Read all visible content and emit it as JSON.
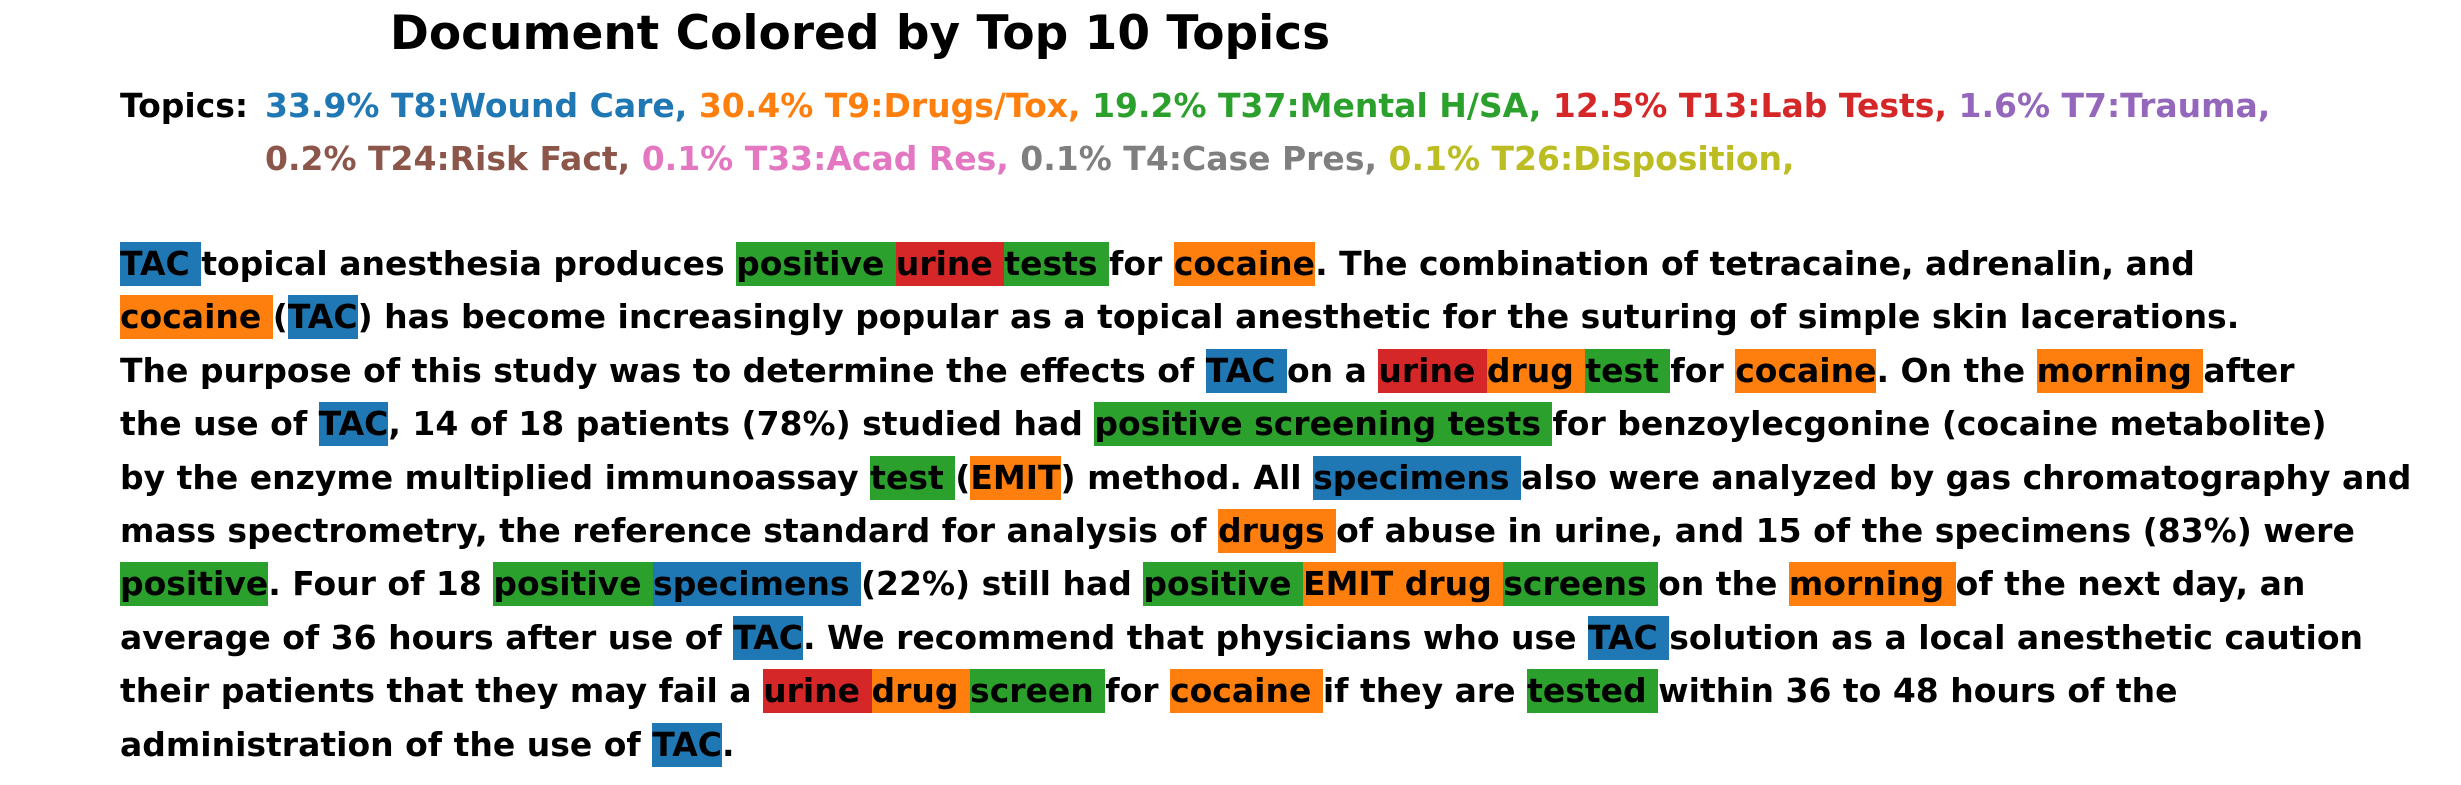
{
  "title": "Document Colored by Top 10 Topics",
  "topics_label": "Topics:",
  "topics_line1": [
    {
      "text": "33.9% T8:Wound Care,",
      "color": "#1f77b4"
    },
    {
      "text": "30.4% T9:Drugs/Tox,",
      "color": "#ff7f0e"
    },
    {
      "text": "19.2% T37:Mental H/SA,",
      "color": "#2ca02c"
    },
    {
      "text": "12.5% T13:Lab Tests,",
      "color": "#d62728"
    },
    {
      "text": "1.6% T7:Trauma,",
      "color": "#9467bd"
    }
  ],
  "topics_line2": [
    {
      "text": "0.2% T24:Risk Fact,",
      "color": "#8c564b"
    },
    {
      "text": "0.1% T33:Acad Res,",
      "color": "#e377c2"
    },
    {
      "text": "0.1% T4:Case Pres,",
      "color": "#7f7f7f"
    },
    {
      "text": "0.1% T26:Disposition,",
      "color": "#bcbd22"
    }
  ],
  "colors": {
    "blue": "#1f77b4",
    "orange": "#ff7f0e",
    "green": "#2ca02c",
    "red": "#d62728"
  },
  "body_lines": [
    [
      {
        "t": "TAC ",
        "c": "blue"
      },
      {
        "t": "topical anesthesia produces "
      },
      {
        "t": "positive ",
        "c": "green"
      },
      {
        "t": "urine ",
        "c": "red"
      },
      {
        "t": "tests ",
        "c": "green"
      },
      {
        "t": "for "
      },
      {
        "t": "cocaine",
        "c": "orange"
      },
      {
        "t": ". The combination of tetracaine, adrenalin, and"
      }
    ],
    [
      {
        "t": "cocaine ",
        "c": "orange"
      },
      {
        "t": "("
      },
      {
        "t": "TAC",
        "c": "blue"
      },
      {
        "t": ") has become increasingly popular as a topical anesthetic for the suturing of simple skin lacerations."
      }
    ],
    [
      {
        "t": "The purpose of this study was to determine the effects of "
      },
      {
        "t": "TAC ",
        "c": "blue"
      },
      {
        "t": "on a "
      },
      {
        "t": "urine ",
        "c": "red"
      },
      {
        "t": "drug ",
        "c": "orange"
      },
      {
        "t": "test ",
        "c": "green"
      },
      {
        "t": "for "
      },
      {
        "t": "cocaine",
        "c": "orange"
      },
      {
        "t": ". On the "
      },
      {
        "t": "morning ",
        "c": "orange"
      },
      {
        "t": "after"
      }
    ],
    [
      {
        "t": "the use of "
      },
      {
        "t": "TAC",
        "c": "blue"
      },
      {
        "t": ", 14 of 18 patients (78%) studied had "
      },
      {
        "t": "positive screening tests ",
        "c": "green"
      },
      {
        "t": "for benzoylecgonine (cocaine metabolite)"
      }
    ],
    [
      {
        "t": "by the enzyme multiplied immunoassay "
      },
      {
        "t": "test ",
        "c": "green"
      },
      {
        "t": "("
      },
      {
        "t": "EMIT",
        "c": "orange"
      },
      {
        "t": ") method. All "
      },
      {
        "t": "specimens ",
        "c": "blue"
      },
      {
        "t": "also were analyzed by gas chromatography and"
      }
    ],
    [
      {
        "t": "mass spectrometry, the reference standard for analysis of "
      },
      {
        "t": "drugs ",
        "c": "orange"
      },
      {
        "t": "of abuse in urine, and 15 of the specimens (83%) were"
      }
    ],
    [
      {
        "t": "positive",
        "c": "green"
      },
      {
        "t": ". Four of 18 "
      },
      {
        "t": "positive ",
        "c": "green"
      },
      {
        "t": "specimens ",
        "c": "blue"
      },
      {
        "t": "(22%) still had "
      },
      {
        "t": "positive ",
        "c": "green"
      },
      {
        "t": "EMIT ",
        "c": "orange"
      },
      {
        "t": "drug ",
        "c": "orange"
      },
      {
        "t": "screens ",
        "c": "green"
      },
      {
        "t": "on the "
      },
      {
        "t": "morning ",
        "c": "orange"
      },
      {
        "t": "of the next day, an"
      }
    ],
    [
      {
        "t": "average of 36 hours after use of "
      },
      {
        "t": "TAC",
        "c": "blue"
      },
      {
        "t": ". We recommend that physicians who use "
      },
      {
        "t": "TAC ",
        "c": "blue"
      },
      {
        "t": "solution as a local anesthetic caution"
      }
    ],
    [
      {
        "t": "their patients that they may fail a "
      },
      {
        "t": "urine ",
        "c": "red"
      },
      {
        "t": "drug ",
        "c": "orange"
      },
      {
        "t": "screen ",
        "c": "green"
      },
      {
        "t": "for "
      },
      {
        "t": "cocaine ",
        "c": "orange"
      },
      {
        "t": "if they are "
      },
      {
        "t": "tested ",
        "c": "green"
      },
      {
        "t": "within 36 to 48 hours of the"
      }
    ],
    [
      {
        "t": "administration of the use of "
      },
      {
        "t": "TAC",
        "c": "blue"
      },
      {
        "t": "."
      }
    ]
  ]
}
